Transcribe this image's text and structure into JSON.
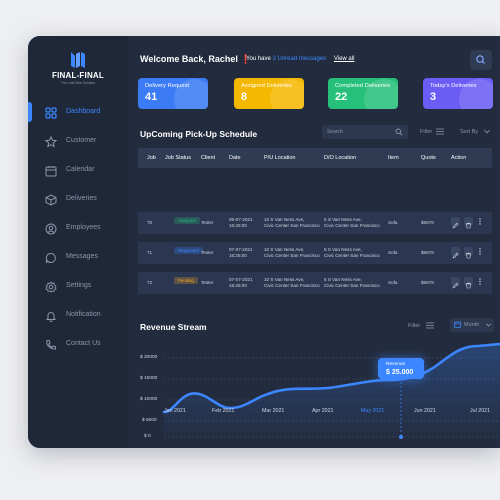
{
  "brand": {
    "name": "FINAL-FINAL",
    "tagline": "The Last Mile Solution"
  },
  "sidebar": {
    "items": [
      {
        "label": "Dashboard",
        "icon": "dashboard-icon",
        "active": true
      },
      {
        "label": "Customer",
        "icon": "star-icon"
      },
      {
        "label": "Calendar",
        "icon": "calendar-icon"
      },
      {
        "label": "Deliveries",
        "icon": "box-icon"
      },
      {
        "label": "Employees",
        "icon": "user-icon"
      },
      {
        "label": "Messages",
        "icon": "chat-icon"
      },
      {
        "label": "Settings",
        "icon": "gear-icon"
      },
      {
        "label": "Notification",
        "icon": "bell-icon"
      },
      {
        "label": "Contact Us",
        "icon": "phone-icon"
      }
    ]
  },
  "header": {
    "welcome": "Welcome Back, Rachel ❗",
    "notice_prefix": "You have",
    "notice_link": "3 Unread messages",
    "view_all": "View all"
  },
  "cards": [
    {
      "title": "Delivery Request",
      "value": "41",
      "color": "#3b7bf5"
    },
    {
      "title": "Assigned Deliveries",
      "value": "8",
      "color": "#f5b800"
    },
    {
      "title": "Completed Deliveries",
      "value": "22",
      "color": "#26c07a"
    },
    {
      "title": "Today's Deliveries",
      "value": "3",
      "color": "#6b5cf5"
    }
  ],
  "schedule": {
    "title": "UpComing Pick-Up Schedule",
    "search_placeholder": "Search",
    "filter_label": "Filter",
    "sort_label": "Sort By",
    "columns": [
      "Job",
      "Job Status",
      "Client",
      "Date",
      "P/U Location",
      "D/O Location",
      "Item",
      "Quote",
      "Action"
    ],
    "rows": [
      {
        "job": "70",
        "status": "Assigned",
        "status_color": "#26c07a",
        "client": "Tester",
        "date1": "06-07-2021",
        "date2": "16:25:00",
        "pu1": "10 S Van Ness Ave,",
        "pu2": "Civic Center San Francisco",
        "do1": "5 S Van Ness Ave,",
        "do2": "Civic Center San Francisco",
        "item": "Sofa",
        "quote": "$5678"
      },
      {
        "job": "71",
        "status": "Requested",
        "status_color": "#3c86ff",
        "client": "Tester",
        "date1": "07-07-2021",
        "date2": "16:25:00",
        "pu1": "10 S Van Ness Ave,",
        "pu2": "Civic Center San Francisco",
        "do1": "5 S Van Ness Ave,",
        "do2": "Civic Center San Francisco",
        "item": "Sofa",
        "quote": "$5678"
      },
      {
        "job": "72",
        "status": "Pending",
        "status_color": "#f5a623",
        "client": "Tester",
        "date1": "07-07-2021",
        "date2": "16:25:00",
        "pu1": "10 S Van Ness Ave,",
        "pu2": "Civic Center San Francisco",
        "do1": "5 S Van Ness Ave,",
        "do2": "Civic Center San Francisco",
        "item": "Sofa",
        "quote": "$5678"
      }
    ]
  },
  "revenue": {
    "title": "Revenue Stream",
    "filter_label": "Filter",
    "period_label": "Month",
    "tooltip_label": "Revenue",
    "tooltip_value": "$ 25.000",
    "y_ticks": [
      "$ 20000",
      "$ 15000",
      "$ 10000",
      "$ 5000",
      "$ 0"
    ],
    "x_ticks": [
      "Jan 2021",
      "Feb 2021",
      "Mar 2021",
      "Apr 2021",
      "May 2021",
      "Jun 2021",
      "Jul 2021"
    ],
    "active_month": "May 2021",
    "accent": "#3c86ff"
  }
}
